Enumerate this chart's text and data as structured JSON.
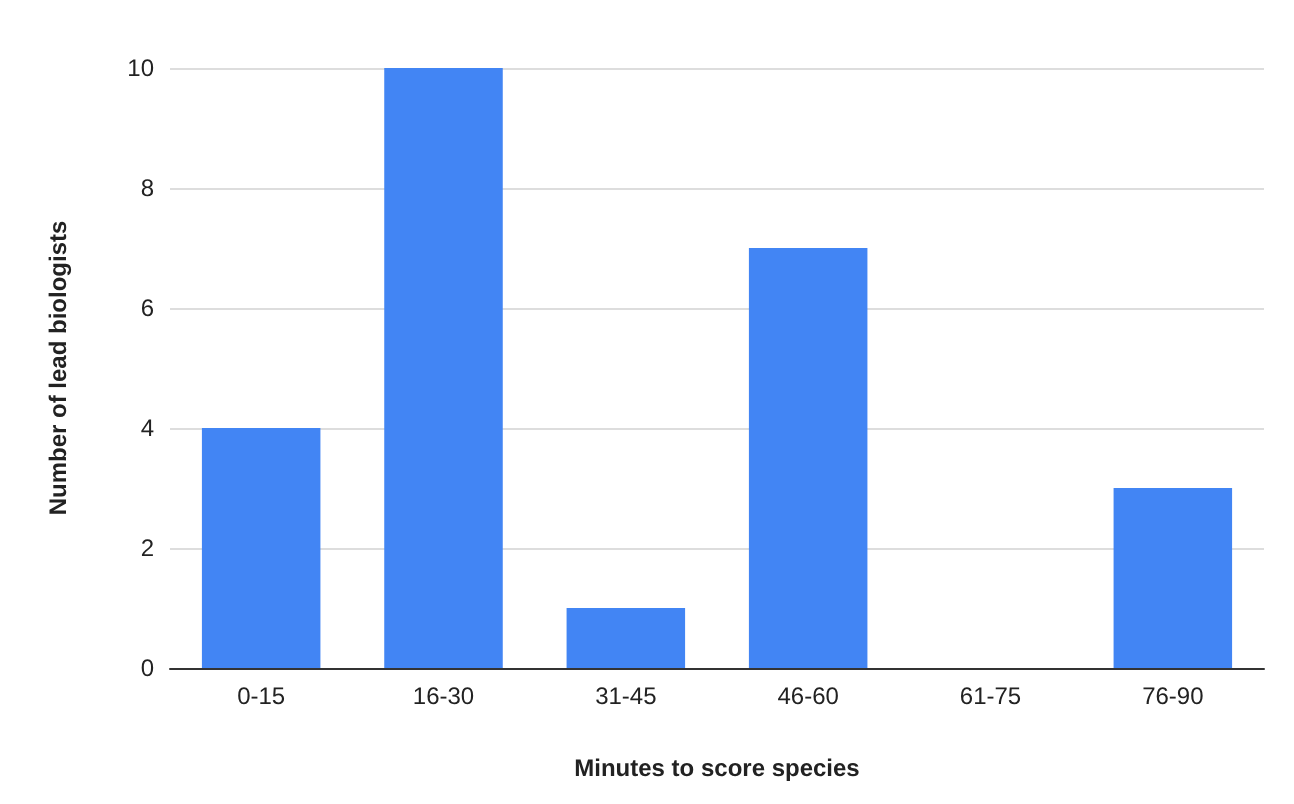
{
  "chart_data": {
    "type": "bar",
    "xlabel": "Minutes to score species",
    "ylabel": "Number of lead biologists",
    "categories": [
      "0-15",
      "16-30",
      "31-45",
      "46-60",
      "61-75",
      "76-90"
    ],
    "values": [
      4,
      10,
      1,
      7,
      0,
      3
    ],
    "color": "#4285f4",
    "ylim": [
      0,
      10
    ],
    "yticks": [
      0,
      2,
      4,
      6,
      8,
      10
    ],
    "grid": "y"
  }
}
